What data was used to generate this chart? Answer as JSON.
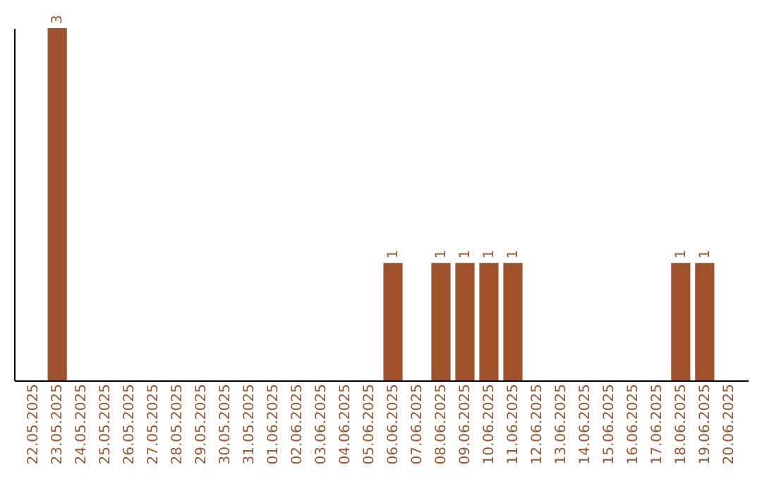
{
  "chart_data": {
    "type": "bar",
    "categories": [
      "22.05.2025",
      "23.05.2025",
      "24.05.2025",
      "25.05.2025",
      "26.05.2025",
      "27.05.2025",
      "28.05.2025",
      "29.05.2025",
      "30.05.2025",
      "31.05.2025",
      "01.06.2025",
      "02.06.2025",
      "03.06.2025",
      "04.06.2025",
      "05.06.2025",
      "06.06.2025",
      "07.06.2025",
      "08.06.2025",
      "09.06.2025",
      "10.06.2025",
      "11.06.2025",
      "12.06.2025",
      "13.06.2025",
      "14.06.2025",
      "15.06.2025",
      "16.06.2025",
      "17.06.2025",
      "18.06.2025",
      "19.06.2025",
      "20.06.2025"
    ],
    "values": [
      0,
      3,
      0,
      0,
      0,
      0,
      0,
      0,
      0,
      0,
      0,
      0,
      0,
      0,
      0,
      1,
      0,
      1,
      1,
      1,
      1,
      0,
      0,
      0,
      0,
      0,
      0,
      1,
      1,
      0
    ],
    "value_labels": [
      null,
      "3",
      null,
      null,
      null,
      null,
      null,
      null,
      null,
      null,
      null,
      null,
      null,
      null,
      null,
      "1",
      null,
      "1",
      "1",
      "1",
      "1",
      null,
      null,
      null,
      null,
      null,
      null,
      "1",
      "1",
      null
    ],
    "color": "#a0522d",
    "grid": false,
    "tick_labels": "x"
  }
}
